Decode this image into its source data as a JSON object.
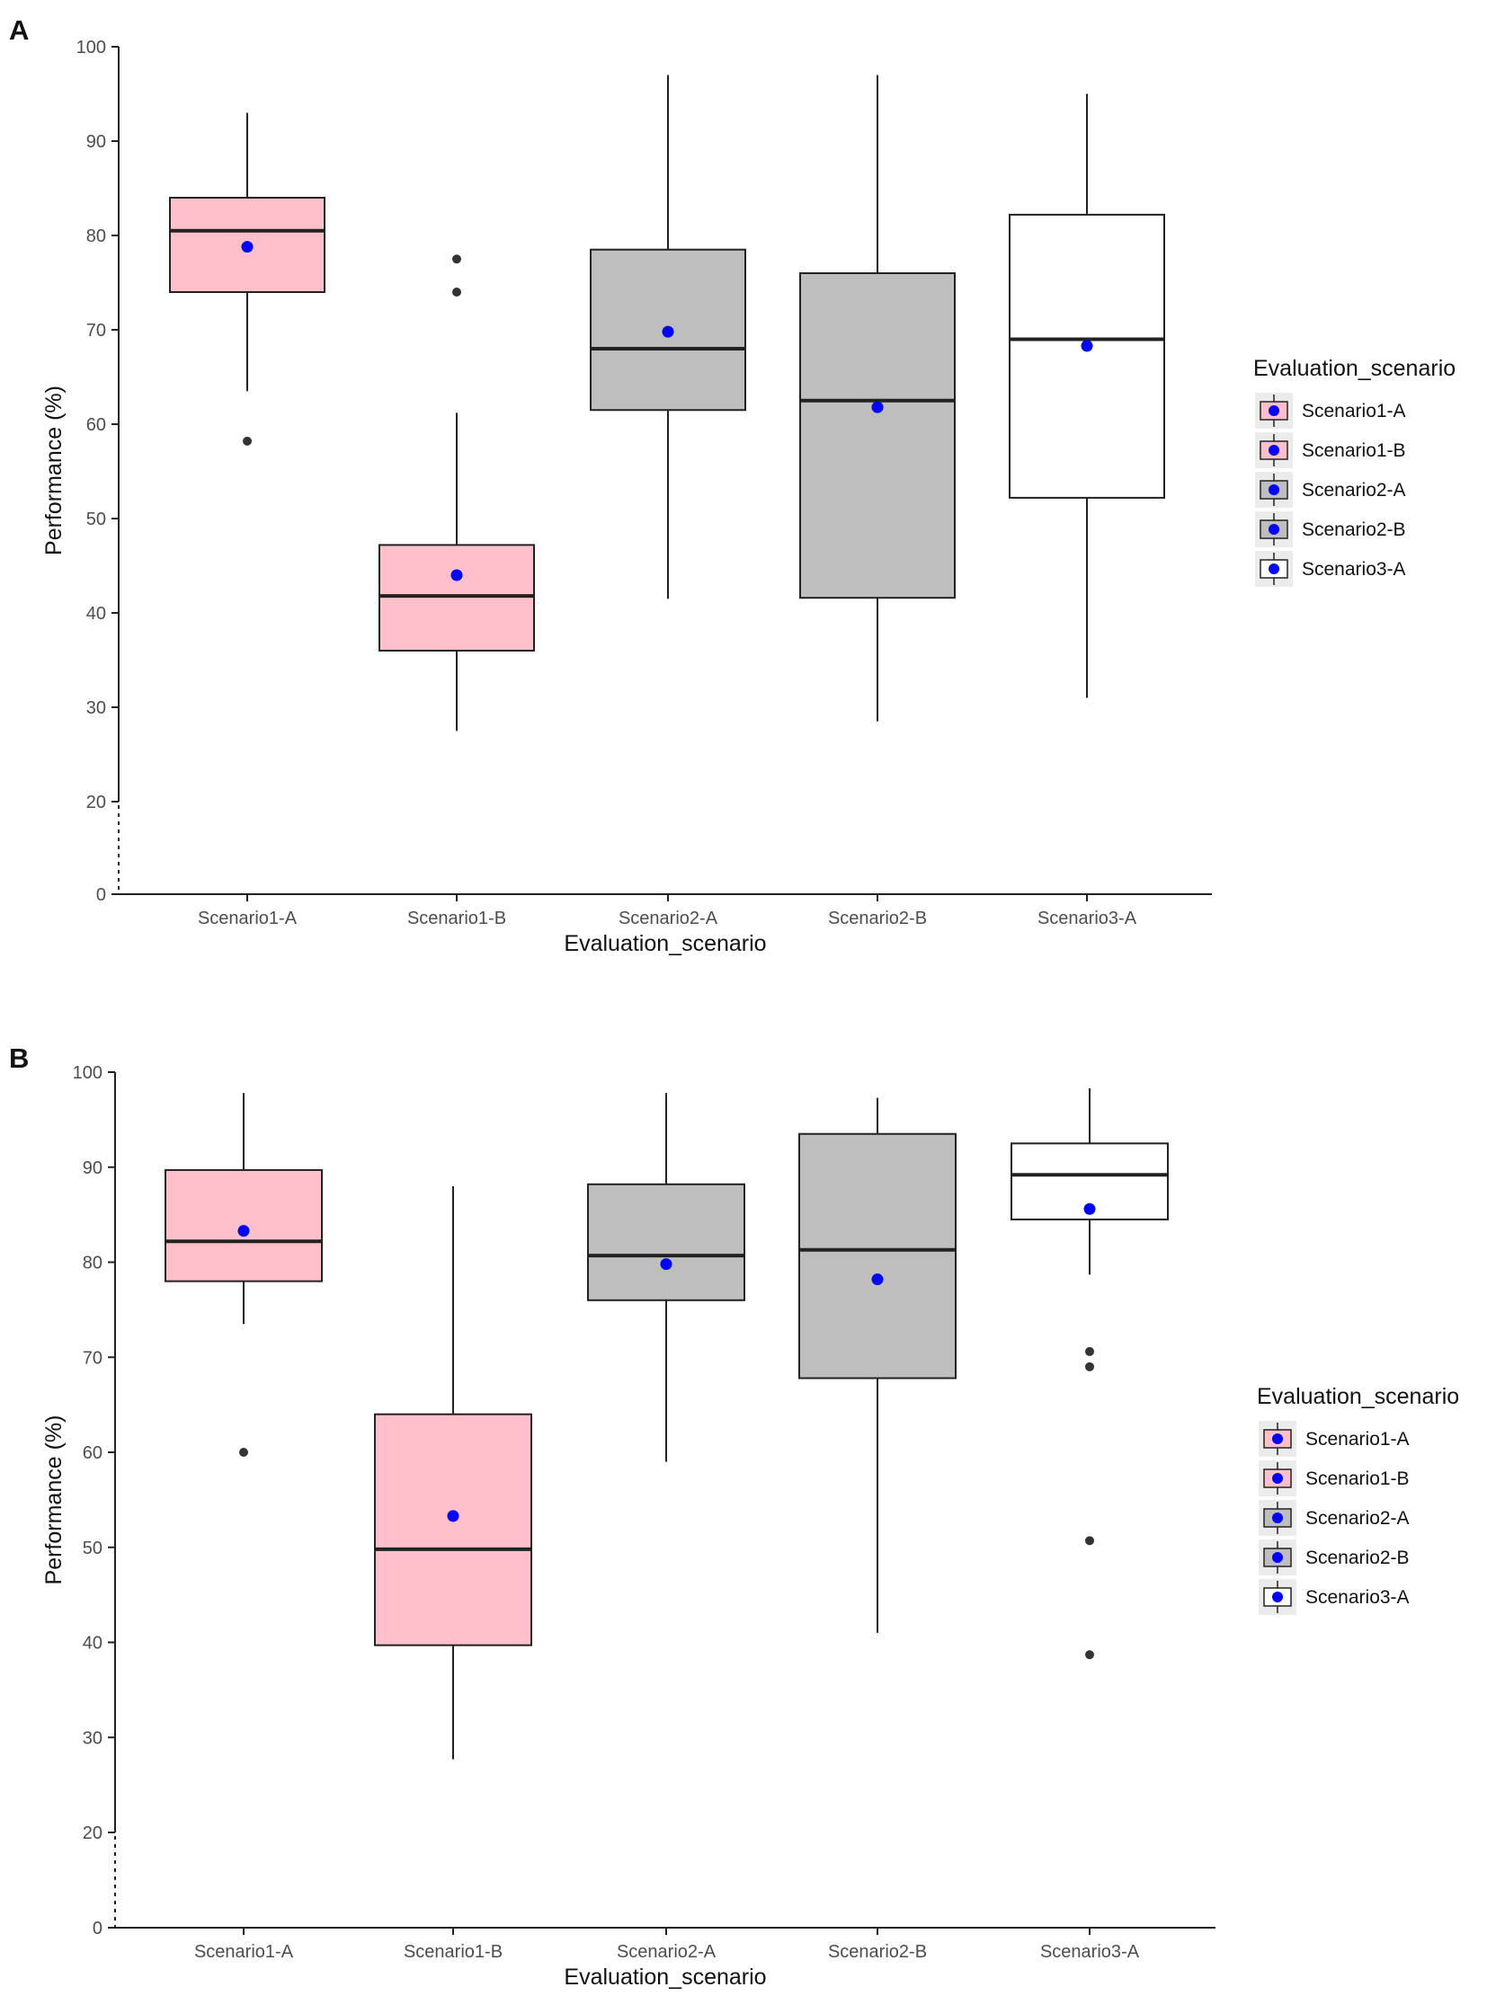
{
  "colors": {
    "pink": "#FFC0CB",
    "grey": "#BEBEBE",
    "white": "#FFFFFF",
    "mean_point": "#0000FF",
    "outlier": "#333333",
    "line": "#222222",
    "tick_text": "#4D4D4D",
    "legend_key_bg": "#EBEBEB"
  },
  "chart_data": [
    {
      "panel_label": "A",
      "type": "boxplot",
      "title": "",
      "xlabel": "Evaluation_scenario",
      "ylabel": "Performance (%)",
      "y_ticks": [
        0,
        20,
        30,
        40,
        50,
        60,
        70,
        80,
        90,
        100
      ],
      "y_tick_labels": [
        "0",
        "20",
        "30",
        "40",
        "50",
        "60",
        "70",
        "80",
        "90",
        "100"
      ],
      "y_axis_break": [
        0,
        20
      ],
      "ylim": [
        0,
        100
      ],
      "categories": [
        "Scenario1-A",
        "Scenario1-B",
        "Scenario2-A",
        "Scenario2-B",
        "Scenario3-A"
      ],
      "boxes": [
        {
          "name": "Scenario1-A",
          "fill": "pink",
          "whisker_low": 63.5,
          "q1": 74.0,
          "median": 80.5,
          "q3": 84.0,
          "whisker_high": 93.0,
          "mean": 78.8,
          "outliers": [
            58.2
          ]
        },
        {
          "name": "Scenario1-B",
          "fill": "pink",
          "whisker_low": 27.5,
          "q1": 36.0,
          "median": 41.8,
          "q3": 47.2,
          "whisker_high": 61.2,
          "mean": 44.0,
          "outliers": [
            74.0,
            77.5
          ]
        },
        {
          "name": "Scenario2-A",
          "fill": "grey",
          "whisker_low": 41.5,
          "q1": 61.5,
          "median": 68.0,
          "q3": 78.5,
          "whisker_high": 97.0,
          "mean": 69.8,
          "outliers": []
        },
        {
          "name": "Scenario2-B",
          "fill": "grey",
          "whisker_low": 28.5,
          "q1": 41.6,
          "median": 62.5,
          "q3": 76.0,
          "whisker_high": 97.0,
          "mean": 61.8,
          "outliers": []
        },
        {
          "name": "Scenario3-A",
          "fill": "white",
          "whisker_low": 31.0,
          "q1": 52.2,
          "median": 69.0,
          "q3": 82.2,
          "whisker_high": 95.0,
          "mean": 68.3,
          "outliers": []
        }
      ],
      "legend": {
        "title": "Evaluation_scenario",
        "position": "right",
        "entries": [
          {
            "label": "Scenario1-A",
            "fill": "pink"
          },
          {
            "label": "Scenario1-B",
            "fill": "pink"
          },
          {
            "label": "Scenario2-A",
            "fill": "grey"
          },
          {
            "label": "Scenario2-B",
            "fill": "grey"
          },
          {
            "label": "Scenario3-A",
            "fill": "white"
          }
        ]
      },
      "grid": false
    },
    {
      "panel_label": "B",
      "type": "boxplot",
      "title": "",
      "xlabel": "Evaluation_scenario",
      "ylabel": "Performance (%)",
      "y_ticks": [
        0,
        20,
        30,
        40,
        50,
        60,
        70,
        80,
        90,
        100
      ],
      "y_tick_labels": [
        "0",
        "20",
        "30",
        "40",
        "50",
        "60",
        "70",
        "80",
        "90",
        "100"
      ],
      "y_axis_break": [
        0,
        20
      ],
      "ylim": [
        0,
        100
      ],
      "categories": [
        "Scenario1-A",
        "Scenario1-B",
        "Scenario2-A",
        "Scenario2-B",
        "Scenario3-A"
      ],
      "boxes": [
        {
          "name": "Scenario1-A",
          "fill": "pink",
          "whisker_low": 73.5,
          "q1": 78.0,
          "median": 82.2,
          "q3": 89.7,
          "whisker_high": 97.8,
          "mean": 83.3,
          "outliers": [
            60.0
          ]
        },
        {
          "name": "Scenario1-B",
          "fill": "pink",
          "whisker_low": 27.7,
          "q1": 39.7,
          "median": 49.8,
          "q3": 64.0,
          "whisker_high": 88.0,
          "mean": 53.3,
          "outliers": []
        },
        {
          "name": "Scenario2-A",
          "fill": "grey",
          "whisker_low": 59.0,
          "q1": 76.0,
          "median": 80.7,
          "q3": 88.2,
          "whisker_high": 97.8,
          "mean": 79.8,
          "outliers": []
        },
        {
          "name": "Scenario2-B",
          "fill": "grey",
          "whisker_low": 41.0,
          "q1": 67.8,
          "median": 81.3,
          "q3": 93.5,
          "whisker_high": 97.3,
          "mean": 78.2,
          "outliers": []
        },
        {
          "name": "Scenario3-A",
          "fill": "white",
          "whisker_low": 78.7,
          "q1": 84.5,
          "median": 89.2,
          "q3": 92.5,
          "whisker_high": 98.3,
          "mean": 85.6,
          "outliers": [
            38.7,
            50.7,
            69.0,
            70.6
          ]
        }
      ],
      "legend": {
        "title": "Evaluation_scenario",
        "position": "right",
        "entries": [
          {
            "label": "Scenario1-A",
            "fill": "pink"
          },
          {
            "label": "Scenario1-B",
            "fill": "pink"
          },
          {
            "label": "Scenario2-A",
            "fill": "grey"
          },
          {
            "label": "Scenario2-B",
            "fill": "grey"
          },
          {
            "label": "Scenario3-A",
            "fill": "white"
          }
        ]
      },
      "grid": false
    }
  ]
}
